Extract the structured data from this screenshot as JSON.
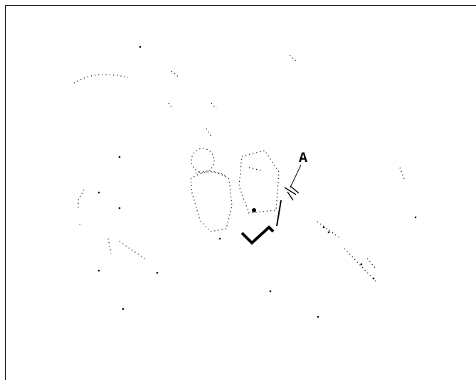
{
  "diagram": {
    "callouts": [
      {
        "id": "A",
        "label": "A"
      }
    ]
  }
}
